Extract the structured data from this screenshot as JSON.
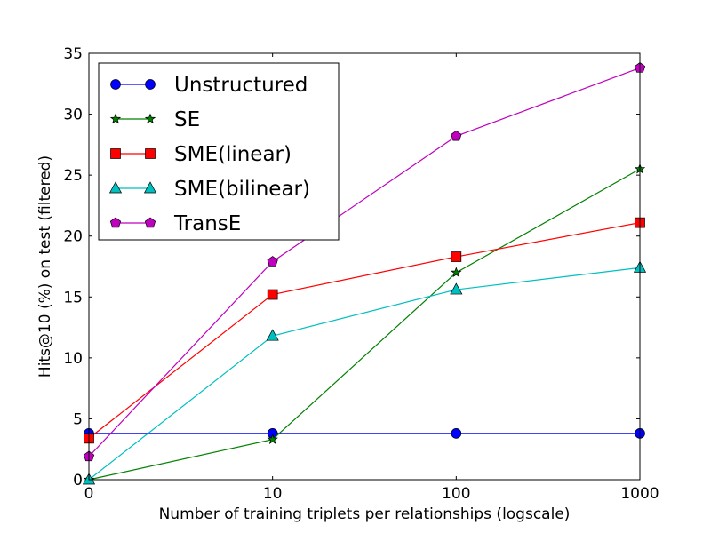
{
  "chart_data": {
    "type": "line",
    "title": "",
    "xlabel": "Number of training triplets per relationships (logscale)",
    "ylabel": "Hits@10 (%) on test (filtered)",
    "x_scale": "log (0 shown at origin)",
    "x": [
      0,
      10,
      100,
      1000
    ],
    "x_tick_labels": [
      "0",
      "10",
      "100",
      "1000"
    ],
    "ylim": [
      0,
      35
    ],
    "y_ticks": [
      0,
      5,
      10,
      15,
      20,
      25,
      30,
      35
    ],
    "grid": false,
    "legend_position": "top-left",
    "series": [
      {
        "name": "Unstructured",
        "color": "#0000ff",
        "marker": "circle",
        "values": [
          3.8,
          3.8,
          3.8,
          3.8
        ]
      },
      {
        "name": "SE",
        "color": "#008000",
        "marker": "star",
        "values": [
          0.0,
          3.3,
          17.0,
          25.5
        ]
      },
      {
        "name": "SME(linear)",
        "color": "#ff0000",
        "marker": "square",
        "values": [
          3.4,
          15.2,
          18.3,
          21.1
        ]
      },
      {
        "name": "SME(bilinear)",
        "color": "#00bfbf",
        "marker": "triangle",
        "values": [
          0.0,
          11.8,
          15.6,
          17.4
        ]
      },
      {
        "name": "TransE",
        "color": "#bf00bf",
        "marker": "pentagon",
        "values": [
          1.9,
          17.9,
          28.2,
          33.8
        ]
      }
    ]
  }
}
